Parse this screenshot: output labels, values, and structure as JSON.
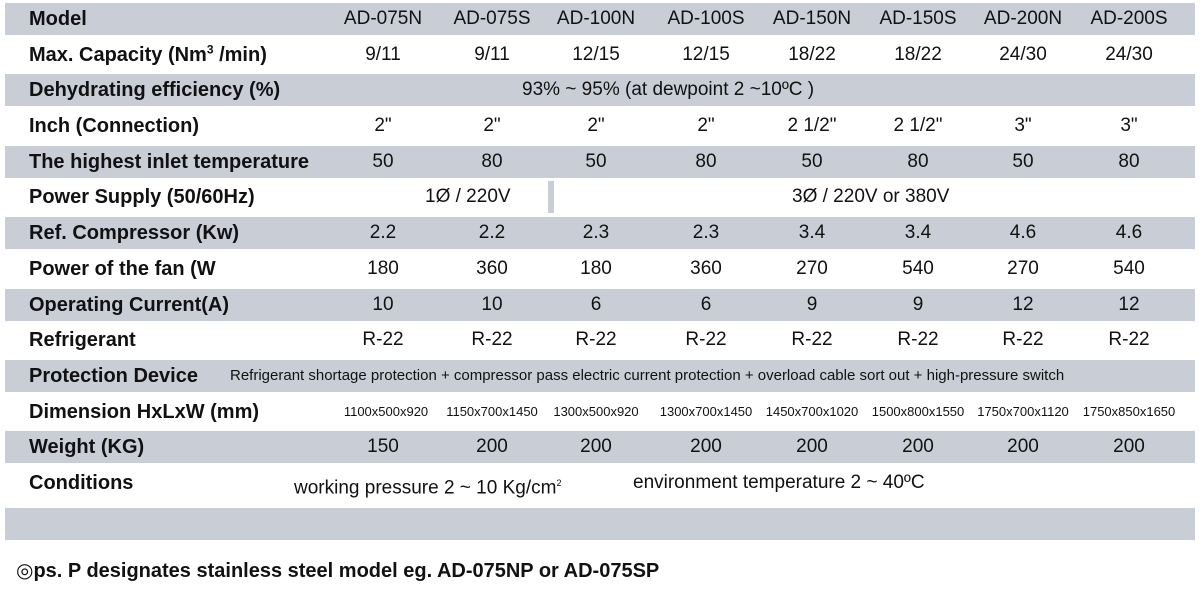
{
  "models": [
    "AD-075N",
    "AD-075S",
    "AD-100N",
    "AD-100S",
    "AD-150N",
    "AD-150S",
    "AD-200N",
    "AD-200S"
  ],
  "rows": {
    "model": {
      "label": "Model"
    },
    "capacity": {
      "label_pre": "Max. Capacity  (Nm",
      "label_sup": "3",
      "label_post": " /min)",
      "values": [
        "9/11",
        "9/11",
        "12/15",
        "12/15",
        "18/22",
        "18/22",
        "24/30",
        "24/30"
      ]
    },
    "dehydrating": {
      "label": "Dehydrating efficiency (%)",
      "value": "93% ~ 95% (at dewpoint 2 ~10ºC )"
    },
    "inch": {
      "label": "Inch (Connection)",
      "values": [
        "2\"",
        "2\"",
        "2\"",
        "2\"",
        "2 1/2\"",
        "2 1/2\"",
        "3\"",
        "3\""
      ]
    },
    "inlet_temp": {
      "label": "The highest inlet temperature",
      "values": [
        "50",
        "80",
        "50",
        "80",
        "50",
        "80",
        "50",
        "80"
      ]
    },
    "power_supply": {
      "label": "Power Supply (50/60Hz)",
      "value_a": "1Ø / 220V",
      "value_b": "3Ø / 220V or 380V"
    },
    "compressor": {
      "label": "Ref. Compressor (Kw)",
      "values": [
        "2.2",
        "2.2",
        "2.3",
        "2.3",
        "3.4",
        "3.4",
        "4.6",
        "4.6"
      ]
    },
    "fan": {
      "label": "Power of the fan (W",
      "values": [
        "180",
        "360",
        "180",
        "360",
        "270",
        "540",
        "270",
        "540"
      ]
    },
    "current": {
      "label": "Operating Current(A)",
      "values": [
        "10",
        "10",
        "6",
        "6",
        "9",
        "9",
        "12",
        "12"
      ]
    },
    "refrigerant": {
      "label": "Refrigerant",
      "values": [
        "R-22",
        "R-22",
        "R-22",
        "R-22",
        "R-22",
        "R-22",
        "R-22",
        "R-22"
      ]
    },
    "protection": {
      "label": "Protection Device",
      "value": "Refrigerant shortage protection + compressor pass electric current protection + overload cable sort out + high-pressure switch"
    },
    "dimension": {
      "label": "Dimension  HxLxW (mm)",
      "values": [
        "1100x500x920",
        "1150x700x1450",
        "1300x500x920",
        "1300x700x1450",
        "1450x700x1020",
        "1500x800x1550",
        "1750x700x1120",
        "1750x850x1650"
      ]
    },
    "weight": {
      "label": "Weight (KG)",
      "values": [
        "150",
        "200",
        "200",
        "200",
        "200",
        "200",
        "200",
        "200"
      ]
    },
    "conditions": {
      "label": "Conditions",
      "pressure_pre": "working pressure 2 ~ 10 Kg/cm",
      "pressure_sup": "2",
      "environment": "environment temperature 2 ~ 40ºC"
    }
  },
  "note": {
    "symbol": "◎",
    "text": "ps. P designates stainless steel model eg. AD-075NP or AD-075SP"
  },
  "colors": {
    "row_shade": "#c9ced6",
    "row_plain": "#ffffff",
    "text": "#111111"
  }
}
